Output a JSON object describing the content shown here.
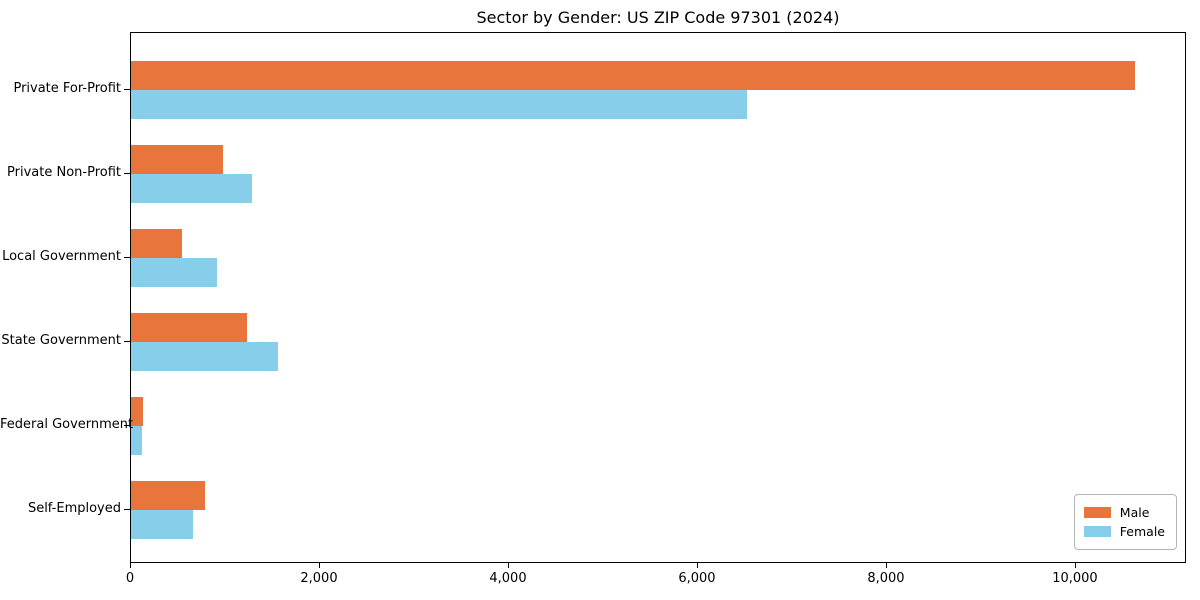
{
  "chart_data": {
    "type": "bar",
    "orientation": "horizontal",
    "title": "Sector by Gender: US ZIP Code 97301 (2024)",
    "categories": [
      "Private For-Profit",
      "Private Non-Profit",
      "Local Government",
      "State Government",
      "Federal Government",
      "Self-Employed"
    ],
    "series": [
      {
        "name": "Male",
        "color": "#e8763c",
        "values": [
          10640,
          980,
          540,
          1230,
          125,
          780
        ]
      },
      {
        "name": "Female",
        "color": "#87ceeb",
        "values": [
          6530,
          1280,
          910,
          1560,
          115,
          655
        ]
      }
    ],
    "xlim": [
      0,
      11175
    ],
    "x_ticks": [
      0,
      2000,
      4000,
      6000,
      8000,
      10000
    ],
    "x_tick_labels": [
      "0",
      "2,000",
      "4,000",
      "6,000",
      "8,000",
      "10,000"
    ],
    "grid": false,
    "legend_position": "lower right",
    "colors": {
      "male": "#e8763c",
      "female": "#87ceeb",
      "axis": "#000000",
      "background": "#ffffff"
    }
  }
}
